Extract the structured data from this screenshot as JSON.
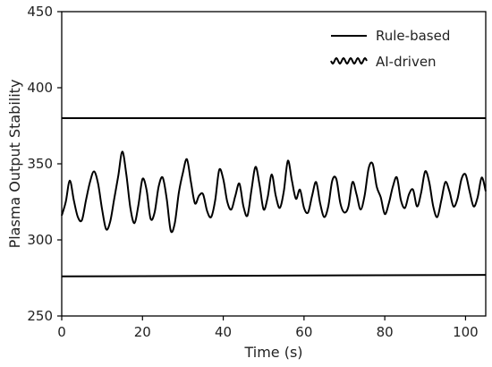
{
  "chart_data": {
    "type": "line",
    "title": "",
    "xlabel": "Time (s)",
    "ylabel": "Plasma Output Stability",
    "xlim": [
      0,
      105
    ],
    "ylim": [
      250,
      450
    ],
    "xticks": [
      0,
      20,
      40,
      60,
      80,
      100
    ],
    "yticks": [
      250,
      300,
      350,
      400,
      450
    ],
    "grid": false,
    "legend_position": "top-right",
    "series": [
      {
        "name": "Rule-based",
        "style": "straight",
        "color": "#000000",
        "lines": [
          {
            "x": [
              0,
              105
            ],
            "y": [
              380,
              380
            ]
          },
          {
            "x": [
              0,
              105
            ],
            "y": [
              276,
              277
            ]
          }
        ]
      },
      {
        "name": "AI-driven",
        "style": "wavy",
        "color": "#000000",
        "x": [
          0,
          1,
          2,
          3,
          4,
          5,
          6,
          7,
          8,
          9,
          10,
          11,
          12,
          13,
          14,
          15,
          16,
          17,
          18,
          19,
          20,
          21,
          22,
          23,
          24,
          25,
          26,
          27,
          28,
          29,
          30,
          31,
          32,
          33,
          34,
          35,
          36,
          37,
          38,
          39,
          40,
          41,
          42,
          43,
          44,
          45,
          46,
          47,
          48,
          49,
          50,
          51,
          52,
          53,
          54,
          55,
          56,
          57,
          58,
          59,
          60,
          61,
          62,
          63,
          64,
          65,
          66,
          67,
          68,
          69,
          70,
          71,
          72,
          73,
          74,
          75,
          76,
          77,
          78,
          79,
          80,
          81,
          82,
          83,
          84,
          85,
          86,
          87,
          88,
          89,
          90,
          91,
          92,
          93,
          94,
          95,
          96,
          97,
          98,
          99,
          100,
          101,
          102,
          103,
          104,
          105
        ],
        "y": [
          316,
          325,
          339,
          326,
          315,
          313,
          326,
          338,
          345,
          337,
          320,
          307,
          312,
          327,
          342,
          358,
          343,
          321,
          311,
          323,
          340,
          333,
          314,
          318,
          335,
          341,
          327,
          306,
          311,
          331,
          344,
          353,
          338,
          324,
          329,
          330,
          319,
          315,
          326,
          346,
          340,
          325,
          320,
          329,
          337,
          322,
          316,
          333,
          348,
          336,
          320,
          328,
          343,
          329,
          321,
          332,
          352,
          339,
          327,
          333,
          321,
          318,
          329,
          338,
          324,
          315,
          322,
          339,
          340,
          324,
          318,
          322,
          338,
          330,
          320,
          329,
          347,
          350,
          335,
          328,
          317,
          324,
          335,
          341,
          326,
          321,
          330,
          333,
          322,
          331,
          345,
          338,
          322,
          315,
          326,
          338,
          332,
          322,
          327,
          340,
          343,
          332,
          322,
          328,
          341,
          332
        ]
      }
    ]
  }
}
